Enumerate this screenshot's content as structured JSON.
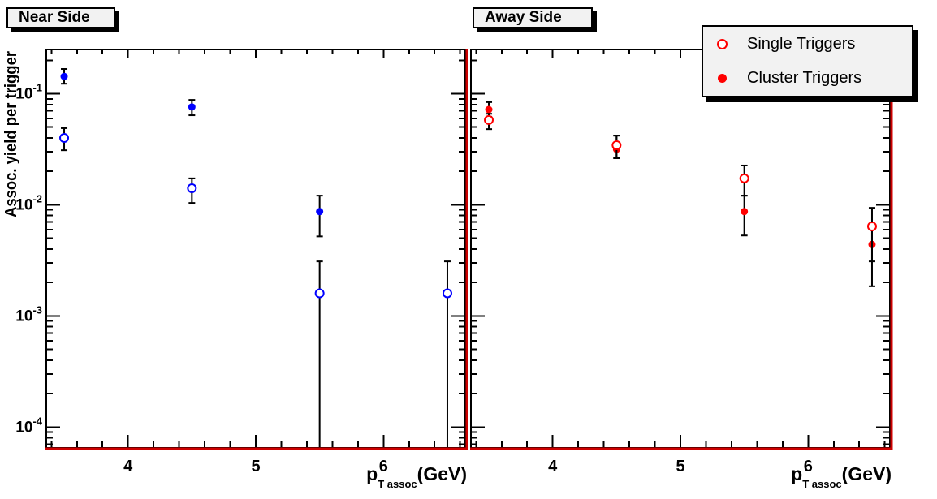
{
  "canvas": {
    "background": "#ffffff"
  },
  "legend": {
    "items": [
      {
        "label": "Single Triggers",
        "marker": "open-circle",
        "color": "#ff0000"
      },
      {
        "label": "Cluster Triggers",
        "marker": "filled-circle",
        "color": "#ff0000"
      }
    ]
  },
  "chart_data": [
    {
      "type": "scatter",
      "title": "Near Side",
      "ylabel": "Assoc. yield per trigger",
      "xlabel_parts": {
        "prefix": "p",
        "sub": "T assoc",
        "suffix": "(GeV)"
      },
      "x_scale": "linear",
      "y_scale": "log",
      "xlim": [
        3.36,
        6.64
      ],
      "ylim": [
        6.5e-05,
        0.25
      ],
      "xticks": [
        4,
        5,
        6
      ],
      "x_minor_step": 0.2,
      "y_tick_exponents": [
        -1,
        -2,
        -3,
        -4
      ],
      "y_tick_labels_visible": true,
      "frame_color": "#000000",
      "accent_line_color": "#cc0000",
      "error_bar_color": "#000000",
      "series": [
        {
          "name": "Single Triggers",
          "marker": "open-circle",
          "color": "#0000ff",
          "points": [
            {
              "x": 3.5,
              "y": 0.04,
              "y_hi": 0.049,
              "y_lo": 0.031
            },
            {
              "x": 4.5,
              "y": 0.0141,
              "y_hi": 0.0173,
              "y_lo": 0.0104
            },
            {
              "x": 5.5,
              "y": 0.0016,
              "y_hi": 0.0031,
              "y_lo": null
            },
            {
              "x": 6.5,
              "y": 0.0016,
              "y_hi": 0.0031,
              "y_lo": null
            }
          ]
        },
        {
          "name": "Cluster Triggers",
          "marker": "filled-circle",
          "color": "#0000ff",
          "points": [
            {
              "x": 3.5,
              "y": 0.143,
              "y_hi": 0.167,
              "y_lo": 0.123
            },
            {
              "x": 4.5,
              "y": 0.076,
              "y_hi": 0.088,
              "y_lo": 0.064
            },
            {
              "x": 5.5,
              "y": 0.0087,
              "y_hi": 0.0121,
              "y_lo": 0.0052
            }
          ]
        }
      ]
    },
    {
      "type": "scatter",
      "title": "Away Side",
      "ylabel": "",
      "xlabel_parts": {
        "prefix": "p",
        "sub": "T assoc",
        "suffix": "(GeV)"
      },
      "x_scale": "linear",
      "y_scale": "log",
      "xlim": [
        3.36,
        6.64
      ],
      "ylim": [
        6.5e-05,
        0.25
      ],
      "xticks": [
        4,
        5,
        6
      ],
      "x_minor_step": 0.2,
      "y_tick_exponents": [
        -1,
        -2,
        -3,
        -4
      ],
      "y_tick_labels_visible": false,
      "frame_color": "#000000",
      "accent_line_color": "#cc0000",
      "error_bar_color": "#000000",
      "series": [
        {
          "name": "Single Triggers",
          "marker": "open-circle",
          "color": "#ff0000",
          "points": [
            {
              "x": 3.5,
              "y": 0.058,
              "y_hi": 0.066,
              "y_lo": 0.048
            },
            {
              "x": 4.5,
              "y": 0.0344,
              "y_hi": 0.042,
              "y_lo": 0.0263
            },
            {
              "x": 5.5,
              "y": 0.0173,
              "y_hi": 0.0226,
              "y_lo": 0.0121
            },
            {
              "x": 6.5,
              "y": 0.0064,
              "y_hi": 0.0094,
              "y_lo": 0.0031
            }
          ]
        },
        {
          "name": "Cluster Triggers",
          "marker": "filled-circle",
          "color": "#ff0000",
          "points": [
            {
              "x": 3.5,
              "y": 0.072,
              "y_hi": 0.084,
              "y_lo": 0.062
            },
            {
              "x": 4.5,
              "y": 0.0316,
              "y_hi": 0.042,
              "y_lo": 0.0263
            },
            {
              "x": 5.5,
              "y": 0.0087,
              "y_hi": 0.0121,
              "y_lo": 0.0053
            },
            {
              "x": 6.5,
              "y": 0.0044,
              "y_hi": 0.006,
              "y_lo": 0.00185
            }
          ]
        }
      ]
    }
  ]
}
